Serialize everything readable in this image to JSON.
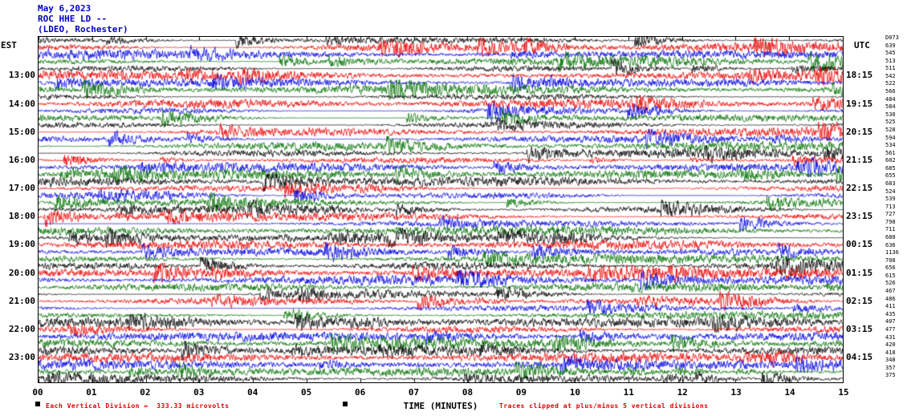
{
  "header": {
    "date": "May 6,2023",
    "station_line": "ROC HHE LD --",
    "location_line": "(LDEO, Rochester)"
  },
  "axes": {
    "left_timezone": "EST",
    "right_timezone": "UTC",
    "left_time_labels": [
      "13:00",
      "14:00",
      "15:00",
      "16:00",
      "17:00",
      "18:00",
      "19:00",
      "20:00",
      "21:00",
      "22:00",
      "23:00"
    ],
    "right_time_labels": [
      "18:15",
      "19:15",
      "20:15",
      "21:15",
      "22:15",
      "23:15",
      "00:15",
      "01:15",
      "02:15",
      "03:15",
      "04:15"
    ],
    "x_tick_labels": [
      "00",
      "01",
      "02",
      "03",
      "04",
      "05",
      "06",
      "07",
      "08",
      "09",
      "10",
      "11",
      "12",
      "13",
      "14",
      "15"
    ],
    "x_axis_title": "TIME (MINUTES)"
  },
  "right_column": [
    "D073",
    "639",
    "545",
    "513",
    "511",
    "542",
    "522",
    "566",
    "484",
    "584",
    "530",
    "525",
    "528",
    "594",
    "534",
    "561",
    "602",
    "685",
    "655",
    "683",
    "524",
    "539",
    "713",
    "727",
    "798",
    "711",
    "680",
    "636",
    "1136",
    "708",
    "656",
    "615",
    "526",
    "467",
    "486",
    "411",
    "435",
    "407",
    "477",
    "431",
    "420",
    "418",
    "348",
    "357",
    "375"
  ],
  "footer": {
    "scale_note": "Each Vertical Division =  333.33 microvolts",
    "clip_note": "Traces clipped at plus/minus 5 vertical divisions"
  },
  "chart_data": {
    "type": "line",
    "subtype": "helicorder_seismogram",
    "title": "ROC HHE LD -- (LDEO, Rochester) May 6,2023",
    "xlabel": "TIME (MINUTES)",
    "x_range_minutes": [
      0,
      15
    ],
    "x_tick_labels": [
      "00",
      "01",
      "02",
      "03",
      "04",
      "05",
      "06",
      "07",
      "08",
      "09",
      "10",
      "11",
      "12",
      "13",
      "14",
      "15"
    ],
    "minutes_per_trace": 15,
    "traces_per_hour": 4,
    "trace_count": 49,
    "first_trace_start_est": "11:45",
    "left_axis_timezone": "EST",
    "right_axis_timezone": "UTC",
    "left_hour_labels_est": [
      "13:00",
      "14:00",
      "15:00",
      "16:00",
      "17:00",
      "18:00",
      "19:00",
      "20:00",
      "21:00",
      "22:00",
      "23:00"
    ],
    "right_quarter_labels_utc": [
      "18:15",
      "19:15",
      "20:15",
      "21:15",
      "22:15",
      "23:15",
      "00:15",
      "01:15",
      "02:15",
      "03:15",
      "04:15"
    ],
    "trace_color_cycle_hex": [
      "#000000",
      "#e80000",
      "#0000e0",
      "#007200"
    ],
    "right_column_values": [
      "D073",
      "639",
      "545",
      "513",
      "511",
      "542",
      "522",
      "566",
      "484",
      "584",
      "530",
      "525",
      "528",
      "594",
      "534",
      "561",
      "602",
      "685",
      "655",
      "683",
      "524",
      "539",
      "713",
      "727",
      "798",
      "711",
      "680",
      "636",
      "1136",
      "708",
      "656",
      "615",
      "526",
      "467",
      "486",
      "411",
      "435",
      "407",
      "477",
      "431",
      "420",
      "418",
      "348",
      "357",
      "375"
    ],
    "vertical_division_microvolts": 333.33,
    "clip_limit_divisions": 5,
    "waveform_note": "continuous ambient seismic noise traces; individual sample values not resolvable in screenshot"
  }
}
